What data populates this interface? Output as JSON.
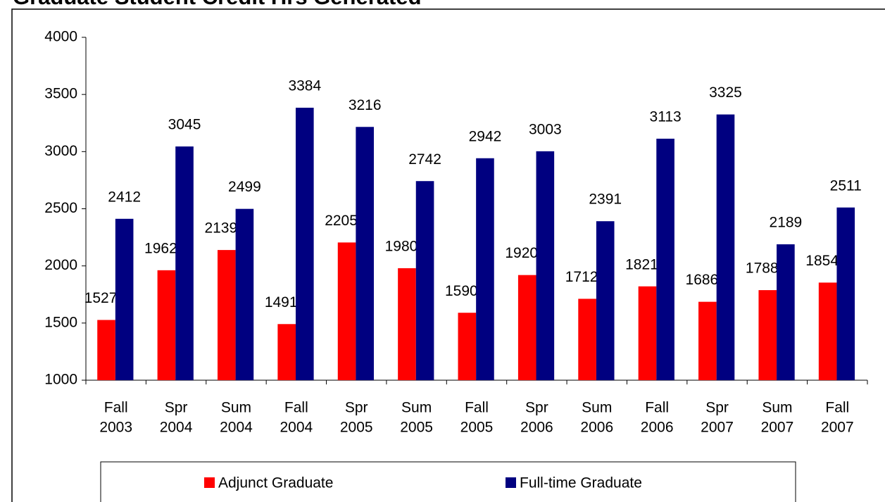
{
  "chart_data": {
    "type": "bar",
    "title": "Graduate Student Credit Hrs Generated",
    "categories": [
      [
        "Fall",
        "2003"
      ],
      [
        "Spr",
        "2004"
      ],
      [
        "Sum",
        "2004"
      ],
      [
        "Fall",
        "2004"
      ],
      [
        "Spr",
        "2005"
      ],
      [
        "Sum",
        "2005"
      ],
      [
        "Fall",
        "2005"
      ],
      [
        "Spr",
        "2006"
      ],
      [
        "Sum",
        "2006"
      ],
      [
        "Fall",
        "2006"
      ],
      [
        "Spr",
        "2007"
      ],
      [
        "Sum",
        "2007"
      ],
      [
        "Fall",
        "2007"
      ]
    ],
    "series": [
      {
        "name": "Adjunct Graduate",
        "color": "#ff0000",
        "values": [
          1527,
          1962,
          2139,
          1491,
          2205,
          1980,
          1590,
          1920,
          1712,
          1821,
          1686,
          1788,
          1854
        ]
      },
      {
        "name": "Full-time Graduate",
        "color": "#000080",
        "values": [
          2412,
          3045,
          2499,
          3384,
          3216,
          2742,
          2942,
          3003,
          2391,
          3113,
          3325,
          2189,
          2511
        ]
      }
    ],
    "ylim": [
      1000,
      4000
    ],
    "yticks": [
      1000,
      1500,
      2000,
      2500,
      3000,
      3500,
      4000
    ],
    "grid": false,
    "legend": "bottom"
  }
}
